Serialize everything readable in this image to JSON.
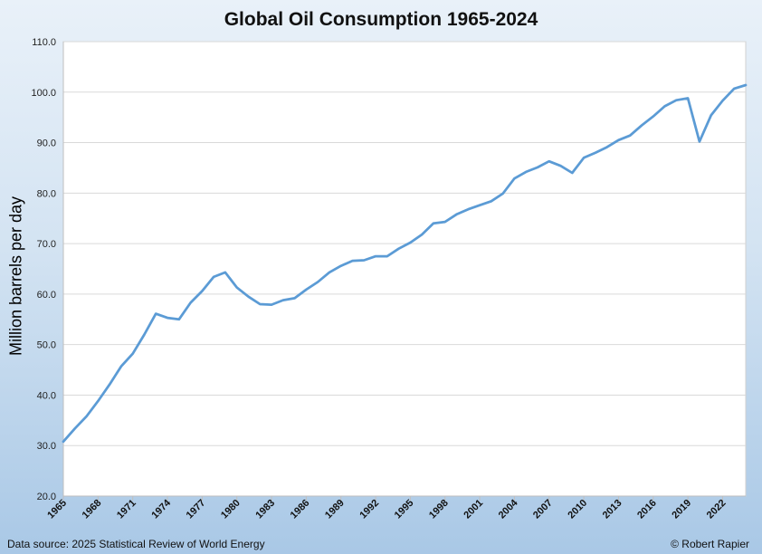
{
  "chart_data": {
    "type": "line",
    "title": "Global Oil Consumption 1965-2024",
    "xlabel": "",
    "ylabel": "Million barrels per day",
    "ylim": [
      20,
      110
    ],
    "xlim": [
      1965,
      2024
    ],
    "yticks": [
      "20.0",
      "30.0",
      "40.0",
      "50.0",
      "60.0",
      "70.0",
      "80.0",
      "90.0",
      "100.0",
      "110.0"
    ],
    "xticks": [
      "1965",
      "1968",
      "1971",
      "1974",
      "1977",
      "1980",
      "1983",
      "1986",
      "1989",
      "1992",
      "1995",
      "1998",
      "2001",
      "2004",
      "2007",
      "2010",
      "2013",
      "2016",
      "2019",
      "2022"
    ],
    "grid": true,
    "line_color": "#5b9bd5",
    "x": [
      1965,
      1966,
      1967,
      1968,
      1969,
      1970,
      1971,
      1972,
      1973,
      1974,
      1975,
      1976,
      1977,
      1978,
      1979,
      1980,
      1981,
      1982,
      1983,
      1984,
      1985,
      1986,
      1987,
      1988,
      1989,
      1990,
      1991,
      1992,
      1993,
      1994,
      1995,
      1996,
      1997,
      1998,
      1999,
      2000,
      2001,
      2002,
      2003,
      2004,
      2005,
      2006,
      2007,
      2008,
      2009,
      2010,
      2011,
      2012,
      2013,
      2014,
      2015,
      2016,
      2017,
      2018,
      2019,
      2020,
      2021,
      2022,
      2023,
      2024
    ],
    "values": [
      30.8,
      33.4,
      35.8,
      38.8,
      42.1,
      45.7,
      48.2,
      52.0,
      56.1,
      55.3,
      55.0,
      58.3,
      60.6,
      63.4,
      64.3,
      61.3,
      59.5,
      58.0,
      57.9,
      58.8,
      59.2,
      60.9,
      62.4,
      64.3,
      65.6,
      66.6,
      66.7,
      67.5,
      67.5,
      69.0,
      70.2,
      71.8,
      74.0,
      74.3,
      75.8,
      76.8,
      77.6,
      78.4,
      79.9,
      82.9,
      84.2,
      85.1,
      86.3,
      85.4,
      84.0,
      87.0,
      88.0,
      89.1,
      90.5,
      91.4,
      93.4,
      95.2,
      97.2,
      98.4,
      98.8,
      90.2,
      95.4,
      98.3,
      100.7,
      101.4
    ]
  },
  "footer": {
    "source": "Data source: 2025 Statistical Review of World Energy",
    "credit": "© Robert Rapier"
  }
}
